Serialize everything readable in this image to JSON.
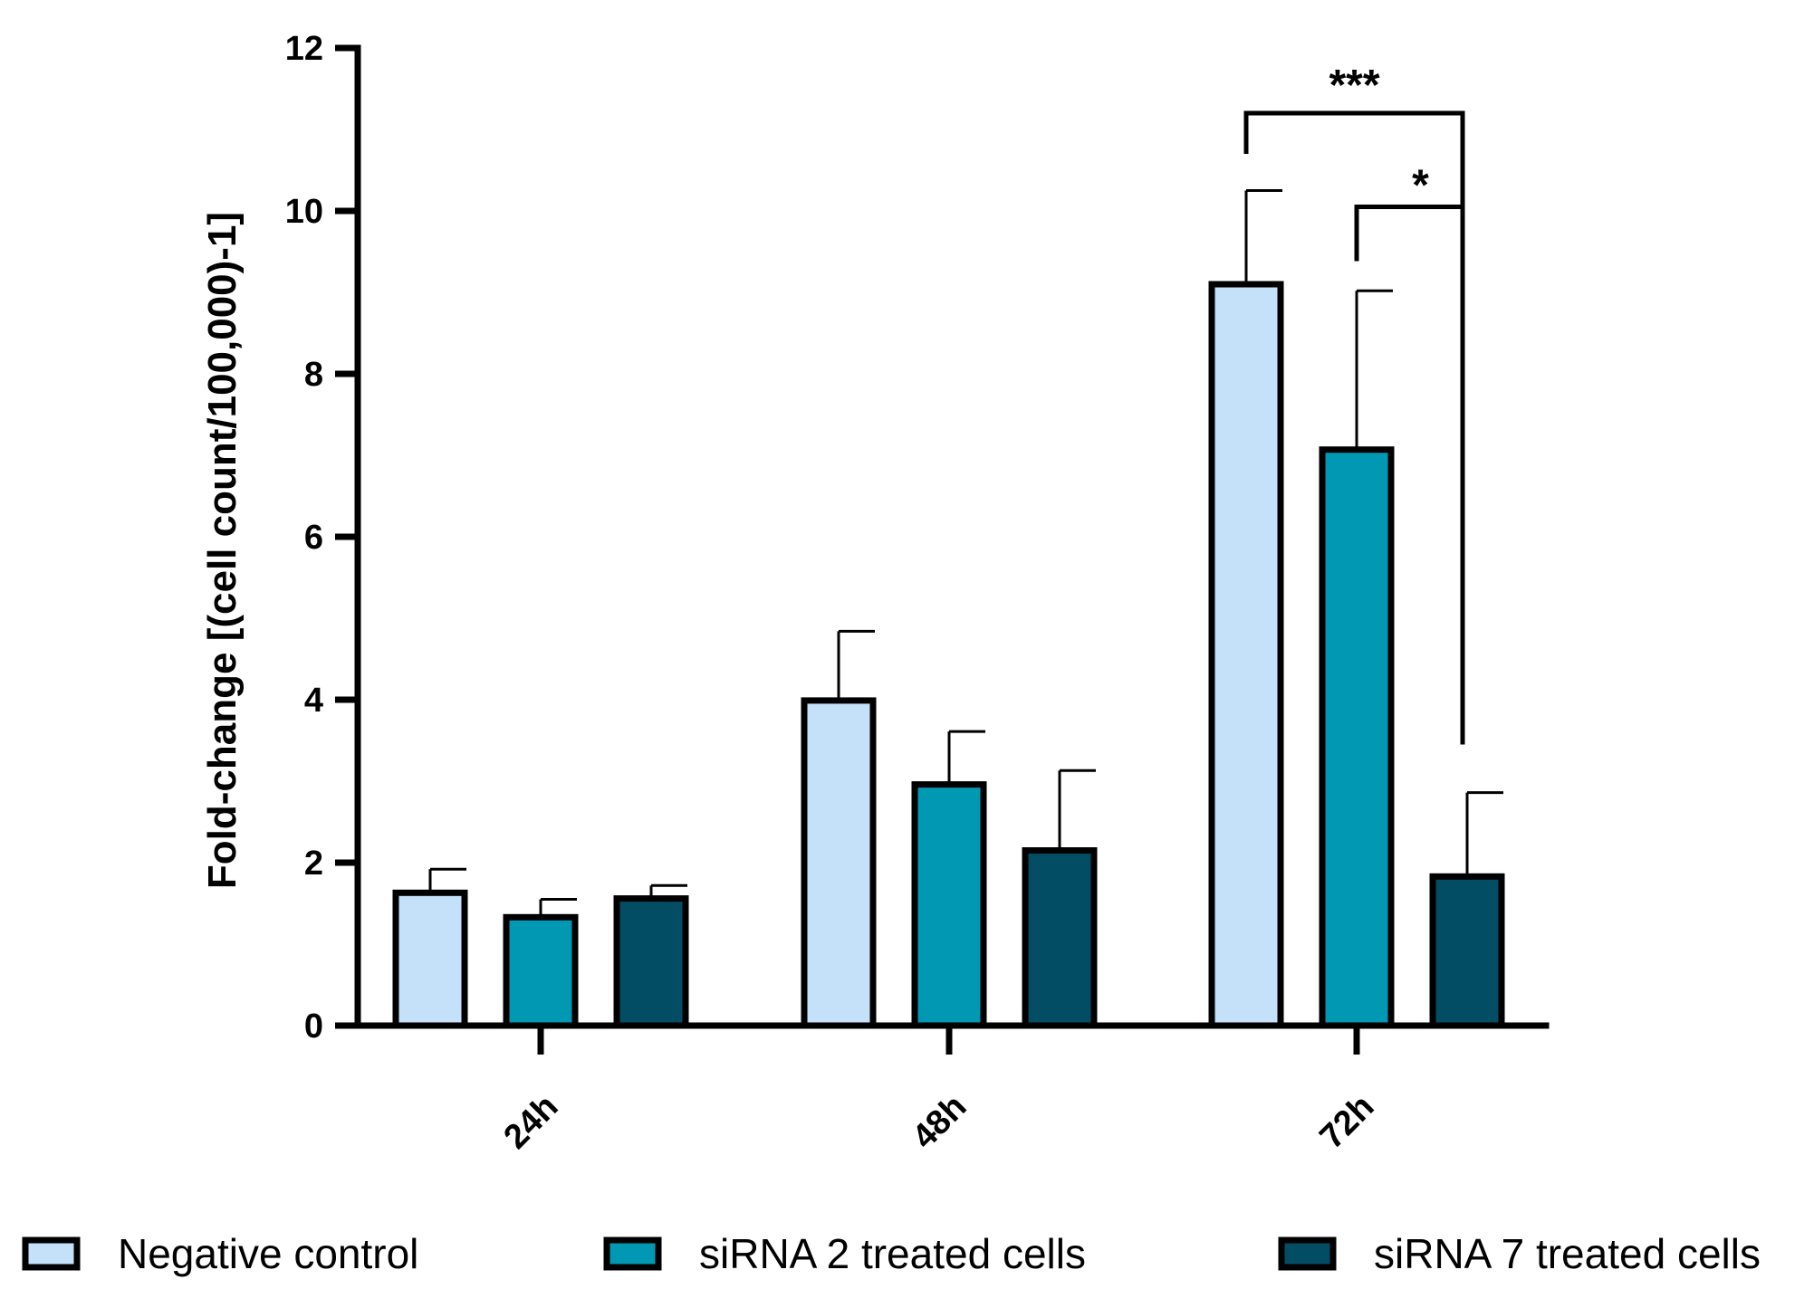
{
  "chart_data": {
    "type": "bar",
    "title": "",
    "xlabel": "",
    "ylabel": "Fold-change [(cell count/100,000)-1]",
    "ylim": [
      0,
      12
    ],
    "yticks": [
      0,
      2,
      4,
      6,
      8,
      10,
      12
    ],
    "categories": [
      "24h",
      "48h",
      "72h"
    ],
    "series": [
      {
        "name": "Negative control",
        "color": "#c5e1f9",
        "values": [
          1.63,
          3.99,
          9.1
        ],
        "errors": [
          0.29,
          0.85,
          1.15
        ]
      },
      {
        "name": "siRNA 2 treated cells",
        "color": "#0098b2",
        "values": [
          1.33,
          2.96,
          7.07
        ],
        "errors": [
          0.22,
          0.65,
          1.95
        ]
      },
      {
        "name": "siRNA 7 treated cells",
        "color": "#034d64",
        "values": [
          1.56,
          2.15,
          1.83
        ],
        "errors": [
          0.16,
          0.98,
          1.03
        ]
      }
    ],
    "significance": [
      {
        "category": "72h",
        "from_series": 0,
        "to_series": 2,
        "label": "***",
        "level": 11.2
      },
      {
        "category": "72h",
        "from_series": 1,
        "to_series": 2,
        "label": "*",
        "level": 10.05
      }
    ],
    "grid": false,
    "legend_position": "bottom"
  }
}
